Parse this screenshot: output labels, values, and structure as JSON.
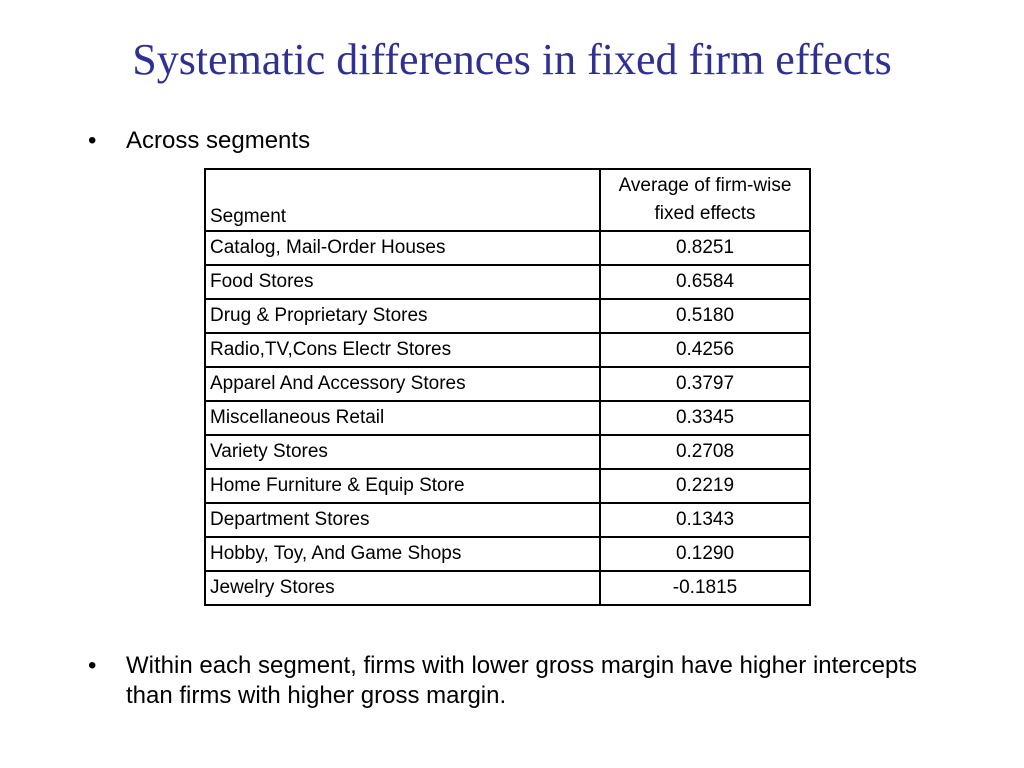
{
  "slide": {
    "title": "Systematic differences in fixed firm effects",
    "bullets": [
      "Across segments",
      "Within each segment, firms with lower gross margin have higher intercepts than firms with higher gross margin."
    ],
    "bullet_symbol": "•"
  },
  "table": {
    "headers": {
      "segment": "Segment",
      "value_line1": "Average of firm-wise",
      "value_line2": "fixed effects"
    },
    "rows": [
      {
        "segment": "Catalog, Mail-Order Houses",
        "value": "0.8251"
      },
      {
        "segment": "Food Stores",
        "value": "0.6584"
      },
      {
        "segment": "Drug & Proprietary Stores",
        "value": "0.5180"
      },
      {
        "segment": "Radio,TV,Cons Electr Stores",
        "value": "0.4256"
      },
      {
        "segment": "Apparel And Accessory Stores",
        "value": "0.3797"
      },
      {
        "segment": "Miscellaneous Retail",
        "value": "0.3345"
      },
      {
        "segment": "Variety Stores",
        "value": "0.2708"
      },
      {
        "segment": "Home Furniture & Equip Store",
        "value": "0.2219"
      },
      {
        "segment": "Department Stores",
        "value": "0.1343"
      },
      {
        "segment": "Hobby, Toy, And Game Shops",
        "value": "0.1290"
      },
      {
        "segment": "Jewelry Stores",
        "value": "-0.1815"
      }
    ]
  },
  "colors": {
    "title": "#2e3192",
    "text": "#000000",
    "background": "#ffffff"
  }
}
